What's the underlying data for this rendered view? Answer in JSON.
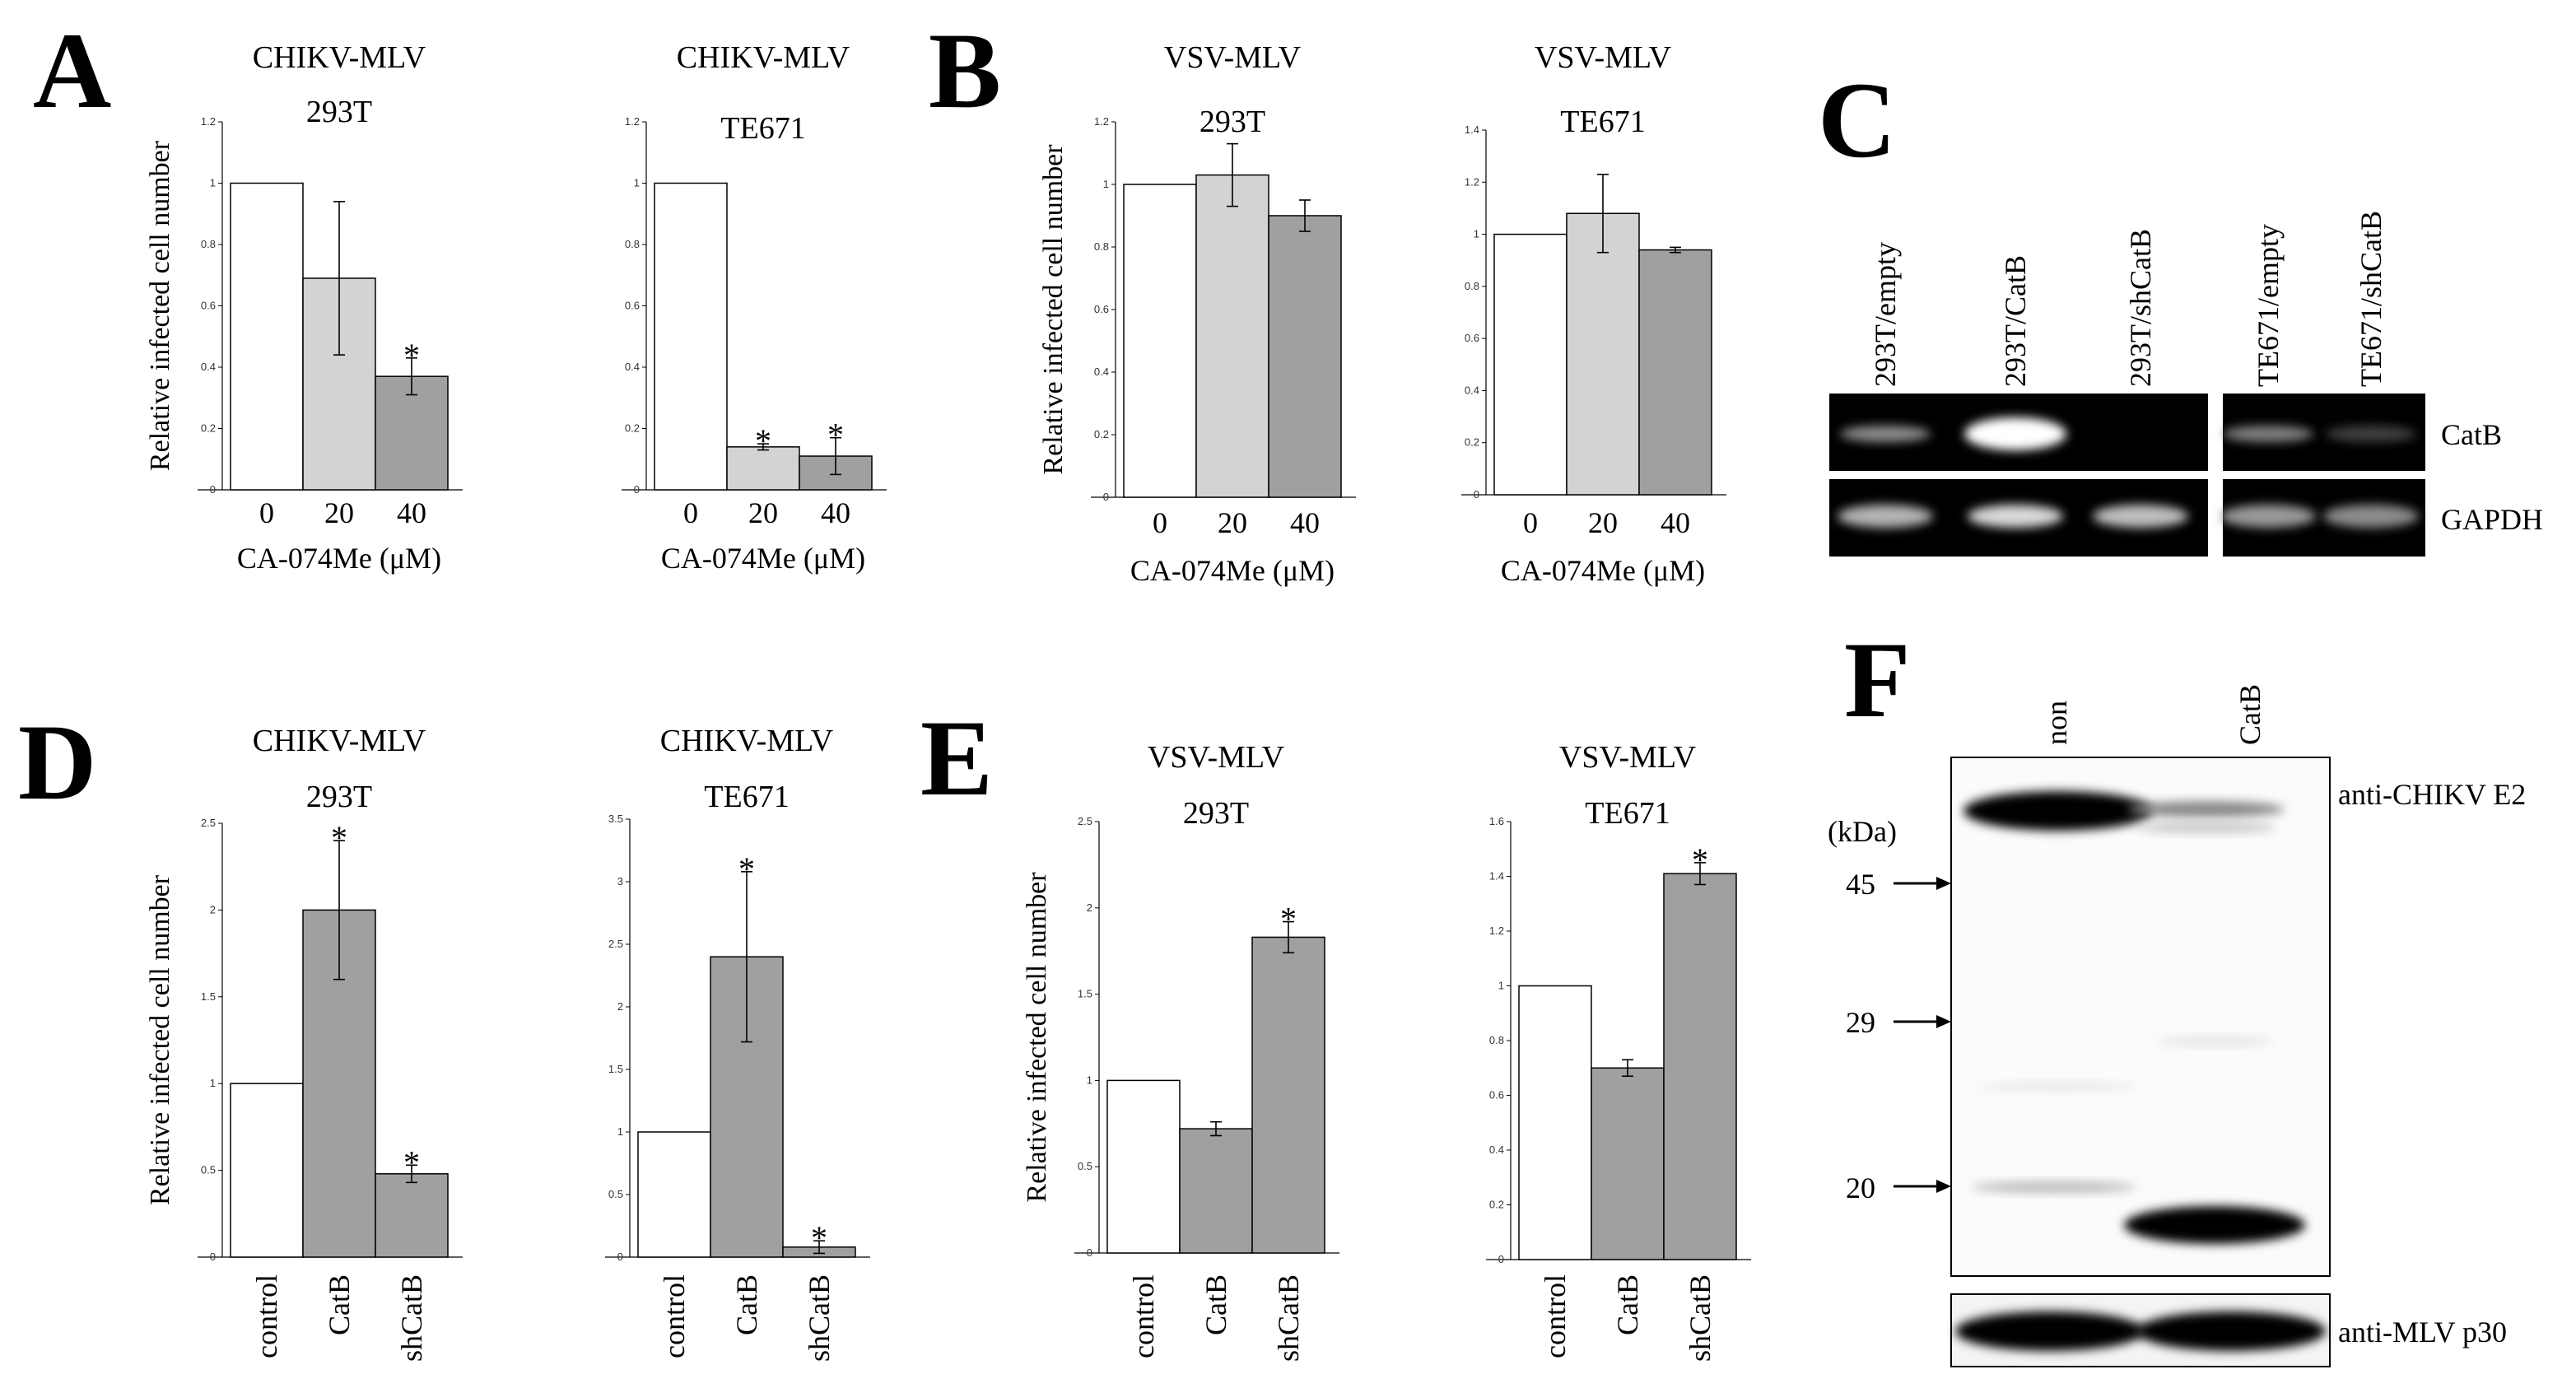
{
  "panels": {
    "A": {
      "label": "A"
    },
    "B": {
      "label": "B"
    },
    "C": {
      "label": "C"
    },
    "D": {
      "label": "D"
    },
    "E": {
      "label": "E"
    },
    "F": {
      "label": "F"
    }
  },
  "common": {
    "ylabel": "Relative infected cell number",
    "xlabel_drug": "CA-074Me (μM)",
    "star": "*"
  },
  "chart_data": [
    {
      "id": "A1",
      "type": "bar",
      "title": "CHIKV-MLV",
      "subtitle": "293T",
      "categories": [
        "0",
        "20",
        "40"
      ],
      "values": [
        1.0,
        0.69,
        0.37
      ],
      "errors": [
        0,
        0.25,
        0.06
      ],
      "stars": [
        false,
        false,
        true
      ],
      "colors": [
        "#ffffff",
        "#d3d3d3",
        "#a0a0a0"
      ],
      "ylim": [
        0,
        1.2
      ],
      "yticks": [
        "0",
        "0.2",
        "0.4",
        "0.6",
        "0.8",
        "1",
        "1.2"
      ],
      "xlabel": "CA-074Me (μM)",
      "ylabel": "Relative infected cell number"
    },
    {
      "id": "A2",
      "type": "bar",
      "title": "CHIKV-MLV",
      "subtitle": "TE671",
      "categories": [
        "0",
        "20",
        "40"
      ],
      "values": [
        1.0,
        0.14,
        0.11
      ],
      "errors": [
        0,
        0.01,
        0.06
      ],
      "stars": [
        false,
        true,
        true
      ],
      "colors": [
        "#ffffff",
        "#d3d3d3",
        "#a0a0a0"
      ],
      "ylim": [
        0,
        1.2
      ],
      "yticks": [
        "0",
        "0.2",
        "0.4",
        "0.6",
        "0.8",
        "1",
        "1.2"
      ],
      "xlabel": "CA-074Me (μM)",
      "ylabel": ""
    },
    {
      "id": "B1",
      "type": "bar",
      "title": "VSV-MLV",
      "subtitle": "293T",
      "categories": [
        "0",
        "20",
        "40"
      ],
      "values": [
        1.0,
        1.03,
        0.9
      ],
      "errors": [
        0,
        0.1,
        0.05
      ],
      "stars": [
        false,
        false,
        false
      ],
      "colors": [
        "#ffffff",
        "#d3d3d3",
        "#a0a0a0"
      ],
      "ylim": [
        0,
        1.2
      ],
      "yticks": [
        "0",
        "0.2",
        "0.4",
        "0.6",
        "0.8",
        "1",
        "1.2"
      ],
      "xlabel": "CA-074Me (μM)",
      "ylabel": "Relative infected cell number"
    },
    {
      "id": "B2",
      "type": "bar",
      "title": "VSV-MLV",
      "subtitle": "TE671",
      "categories": [
        "0",
        "20",
        "40"
      ],
      "values": [
        1.0,
        1.08,
        0.94
      ],
      "errors": [
        0,
        0.15,
        0.01
      ],
      "stars": [
        false,
        false,
        false
      ],
      "colors": [
        "#ffffff",
        "#d3d3d3",
        "#a0a0a0"
      ],
      "ylim": [
        0,
        1.4
      ],
      "yticks": [
        "0",
        "0.2",
        "0.4",
        "0.6",
        "0.8",
        "1",
        "1.2",
        "1.4"
      ],
      "xlabel": "CA-074Me (μM)",
      "ylabel": ""
    },
    {
      "id": "D1",
      "type": "bar",
      "title": "CHIKV-MLV",
      "subtitle": "293T",
      "categories": [
        "control",
        "CatB",
        "shCatB"
      ],
      "values": [
        1.0,
        2.0,
        0.48
      ],
      "errors": [
        0,
        0.4,
        0.05
      ],
      "stars": [
        false,
        true,
        true
      ],
      "colors": [
        "#ffffff",
        "#a0a0a0",
        "#a0a0a0"
      ],
      "ylim": [
        0,
        2.5
      ],
      "yticks": [
        "0",
        "0.5",
        "1",
        "1.5",
        "2",
        "2.5"
      ],
      "xlabel": "",
      "ylabel": "Relative infected cell number"
    },
    {
      "id": "D2",
      "type": "bar",
      "title": "CHIKV-MLV",
      "subtitle": "TE671",
      "categories": [
        "control",
        "CatB",
        "shCatB"
      ],
      "values": [
        1.0,
        2.4,
        0.08
      ],
      "errors": [
        0,
        0.68,
        0.05
      ],
      "stars": [
        false,
        true,
        true
      ],
      "colors": [
        "#ffffff",
        "#a0a0a0",
        "#a0a0a0"
      ],
      "ylim": [
        0,
        3.5
      ],
      "yticks": [
        "0",
        "0.5",
        "1",
        "1.5",
        "2",
        "2.5",
        "3",
        "3.5"
      ],
      "xlabel": "",
      "ylabel": ""
    },
    {
      "id": "E1",
      "type": "bar",
      "title": "VSV-MLV",
      "subtitle": "293T",
      "categories": [
        "control",
        "CatB",
        "shCatB"
      ],
      "values": [
        1.0,
        0.72,
        1.83
      ],
      "errors": [
        0,
        0.04,
        0.09
      ],
      "stars": [
        false,
        false,
        true
      ],
      "colors": [
        "#ffffff",
        "#a0a0a0",
        "#a0a0a0"
      ],
      "ylim": [
        0,
        2.5
      ],
      "yticks": [
        "0",
        "0.5",
        "1",
        "1.5",
        "2",
        "2.5"
      ],
      "xlabel": "",
      "ylabel": "Relative infected cell number"
    },
    {
      "id": "E2",
      "type": "bar",
      "title": "VSV-MLV",
      "subtitle": "TE671",
      "categories": [
        "control",
        "CatB",
        "shCatB"
      ],
      "values": [
        1.0,
        0.7,
        1.41
      ],
      "errors": [
        0,
        0.03,
        0.04
      ],
      "stars": [
        false,
        false,
        true
      ],
      "colors": [
        "#ffffff",
        "#a0a0a0",
        "#a0a0a0"
      ],
      "ylim": [
        0,
        1.6
      ],
      "yticks": [
        "0",
        "0.2",
        "0.4",
        "0.6",
        "0.8",
        "1",
        "1.2",
        "1.4",
        "1.6"
      ],
      "xlabel": "",
      "ylabel": ""
    }
  ],
  "gel": {
    "lanes": [
      "293T/empty",
      "293T/CatB",
      "293T/shCatB",
      "TE671/empty",
      "TE671/shCatB"
    ],
    "rows": [
      "CatB",
      "GAPDH"
    ],
    "catb_intensity": [
      0.55,
      1.0,
      0.0,
      0.5,
      0.25
    ],
    "gapdh_intensity": [
      0.7,
      0.85,
      0.75,
      0.6,
      0.55
    ]
  },
  "western": {
    "lanes": [
      "non",
      "CatB"
    ],
    "unit": "(kDa)",
    "markers": [
      "45",
      "29",
      "20"
    ],
    "labels": {
      "e2": "anti-CHIKV E2",
      "p30": "anti-MLV p30"
    }
  }
}
